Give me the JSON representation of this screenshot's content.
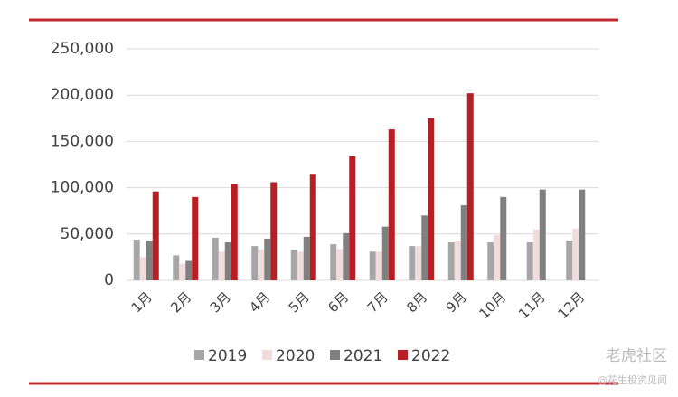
{
  "chart_data": {
    "type": "bar",
    "categories": [
      "1月",
      "2月",
      "3月",
      "4月",
      "5月",
      "6月",
      "7月",
      "8月",
      "9月",
      "10月",
      "11月",
      "12月"
    ],
    "series": [
      {
        "name": "2019",
        "color": "#a6a6a6",
        "values": [
          44000,
          27000,
          46000,
          37000,
          33000,
          39000,
          31000,
          37000,
          41000,
          41000,
          41000,
          43000
        ]
      },
      {
        "name": "2020",
        "color": "#f2dcdb",
        "values": [
          25000,
          18000,
          31000,
          33000,
          31000,
          34000,
          31000,
          37000,
          43000,
          49000,
          55000,
          56000
        ]
      },
      {
        "name": "2021",
        "color": "#808080",
        "values": [
          43000,
          21000,
          41000,
          45000,
          47000,
          51000,
          58000,
          70000,
          81000,
          90000,
          98000,
          98000
        ]
      },
      {
        "name": "2022",
        "color": "#b81f24",
        "values": [
          96000,
          90000,
          104000,
          106000,
          115000,
          134000,
          163000,
          175000,
          202000,
          null,
          null,
          null
        ]
      }
    ],
    "ylim": [
      0,
      250000
    ],
    "yticks": [
      0,
      {
        "value": 50000,
        "label": "50,000"
      },
      {
        "value": 100000,
        "label": "100,000"
      },
      {
        "value": 150000,
        "label": "150,000"
      },
      {
        "value": 200000,
        "label": "200,000"
      },
      {
        "value": 250000,
        "label": "250,000"
      }
    ],
    "grid": true,
    "legend": "bottom",
    "watermark": [
      "老虎社区",
      "@花生投资见闻"
    ]
  }
}
